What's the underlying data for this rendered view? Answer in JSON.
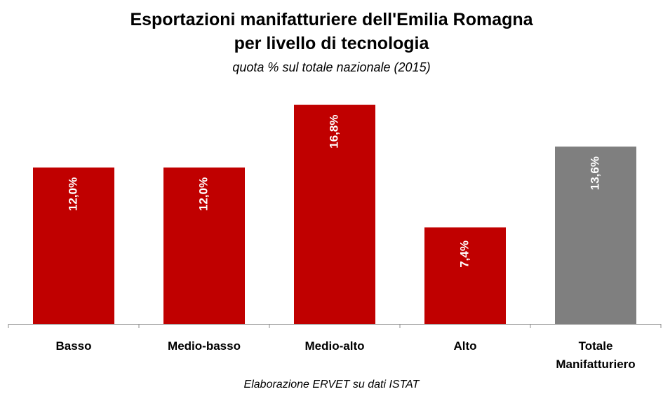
{
  "title_line1": "Esportazioni manifatturiere dell'Emilia Romagna",
  "title_line2": "per livello di tecnologia",
  "subtitle": "quota % sul totale nazionale (2015)",
  "source": "Elaborazione ERVET su dati ISTAT",
  "colors": {
    "primary": "#C00000",
    "total": "#7F7F7F",
    "axis": "#8C8C8C"
  },
  "chart_data": {
    "type": "bar",
    "title": "Esportazioni manifatturiere dell'Emilia Romagna per livello di tecnologia",
    "subtitle": "quota % sul totale nazionale (2015)",
    "categories": [
      [
        "Basso"
      ],
      [
        "Medio-basso"
      ],
      [
        "Medio-alto"
      ],
      [
        "Alto"
      ],
      [
        "Totale",
        "Manifatturiero"
      ]
    ],
    "values": [
      12.0,
      12.0,
      16.8,
      7.4,
      13.6
    ],
    "value_labels": [
      "12,0%",
      "12,0%",
      "16,8%",
      "7,4%",
      "13,6%"
    ],
    "bar_colors": [
      "#C00000",
      "#C00000",
      "#C00000",
      "#C00000",
      "#7F7F7F"
    ],
    "ylim": [
      0,
      18.5
    ],
    "grid": false,
    "legend": "none",
    "xlabel": "",
    "ylabel": ""
  }
}
